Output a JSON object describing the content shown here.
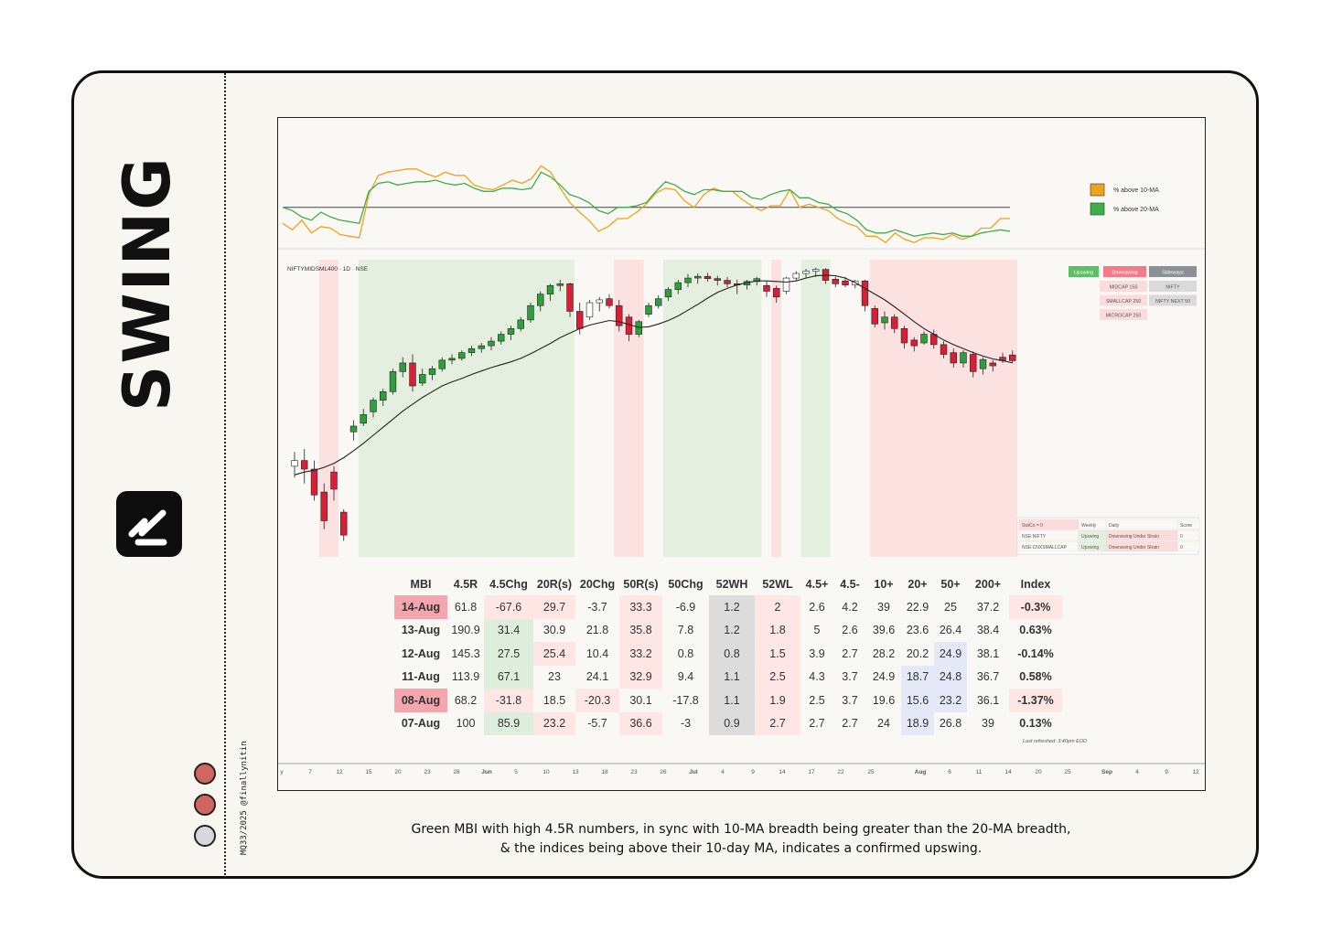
{
  "page": {
    "caption_line1": "Green MBI with high 4.5R numbers, in sync with 10-MA breadth being greater than the 20-MA breadth,",
    "caption_line2": "& the indices being above their 10-day MA, indicates a confirmed upswing.",
    "credit": "MQ33/2025 @finallynitin"
  },
  "brand": {
    "name": "SWING",
    "logo_icon": "swing-logo-icon"
  },
  "dots": [
    "#d06660",
    "#d06660",
    "#d5d8dd"
  ],
  "chart_data": [
    {
      "type": "line",
      "title": "",
      "legend_position": "top-right",
      "series": [
        {
          "name": "% above 10-MA",
          "color": "#f0a21a",
          "values": [
            42,
            38,
            44,
            36,
            40,
            39,
            35,
            34,
            33,
            60,
            72,
            74,
            75,
            76,
            76,
            73,
            71,
            74,
            72,
            72,
            66,
            64,
            63,
            66,
            69,
            67,
            70,
            78,
            74,
            64,
            55,
            49,
            44,
            37,
            40,
            45,
            45,
            49,
            54,
            61,
            64,
            63,
            56,
            52,
            60,
            64,
            62,
            62,
            57,
            53,
            50,
            53,
            53,
            63,
            52,
            54,
            52,
            50,
            45,
            42,
            40,
            34,
            34,
            30,
            36,
            32,
            30,
            33,
            33,
            32,
            35,
            32,
            34,
            39,
            39,
            45,
            45
          ]
        },
        {
          "name": "% above 20-MA",
          "color": "#3fae4a",
          "values": [
            52,
            50,
            46,
            44,
            49,
            46,
            44,
            43,
            42,
            62,
            67,
            68,
            66,
            67,
            68,
            68,
            69,
            67,
            66,
            67,
            64,
            62,
            62,
            64,
            64,
            63,
            64,
            74,
            71,
            66,
            60,
            58,
            55,
            50,
            48,
            52,
            52,
            53,
            55,
            62,
            68,
            66,
            62,
            60,
            63,
            63,
            62,
            62,
            62,
            58,
            57,
            60,
            62,
            63,
            58,
            58,
            55,
            54,
            50,
            48,
            44,
            38,
            36,
            36,
            38,
            36,
            34,
            35,
            36,
            35,
            36,
            34,
            34,
            36,
            37,
            38,
            37
          ]
        }
      ],
      "reference_line": 52
    },
    {
      "type": "candlestick",
      "title": "NIFTYMIDSML400 · 1D · NSE",
      "x_tick_labels": [
        "y",
        "7",
        "12",
        "15",
        "20",
        "23",
        "28",
        "Jun",
        "5",
        "10",
        "13",
        "18",
        "23",
        "26",
        "Jul",
        "4",
        "9",
        "14",
        "17",
        "22",
        "25",
        "Aug",
        "6",
        "11",
        "14",
        "20",
        "25",
        "Sep",
        "4",
        "9",
        "12"
      ],
      "regime_legend": {
        "upswing": "Upswing",
        "downswing": "Downswing",
        "sideways": "Sideways"
      },
      "regime_grid": [
        [
          "MIDCAP 150",
          "NIFTY"
        ],
        [
          "SMALLCAP 250",
          "NIFTY NEXT 50"
        ],
        [
          "MICROCAP 250",
          ""
        ]
      ],
      "status_table": {
        "headers": [
          "SwiCo = 0",
          "Weekly",
          "Daily",
          "Score"
        ],
        "rows": [
          [
            "NSE:NIFTY",
            "Upswing",
            "Downswing Under Strain",
            "0"
          ],
          [
            "NSE:CNXSMALLCAP",
            "Upswing",
            "Downswing Under Strain",
            "0"
          ]
        ]
      },
      "regimes": [
        [
          "neutral",
          0,
          3
        ],
        [
          "down",
          3,
          5
        ],
        [
          "neutral",
          5,
          7
        ],
        [
          "up",
          7,
          29
        ],
        [
          "neutral",
          29,
          33
        ],
        [
          "down",
          33,
          36
        ],
        [
          "neutral",
          36,
          38
        ],
        [
          "up",
          38,
          48
        ],
        [
          "neutral",
          48,
          49
        ],
        [
          "down",
          49,
          50
        ],
        [
          "neutral",
          50,
          52
        ],
        [
          "up",
          52,
          55
        ],
        [
          "neutral",
          55,
          59
        ],
        [
          "down",
          59,
          74
        ]
      ],
      "candles": [
        [
          3260,
          3285,
          3240,
          3270
        ],
        [
          3270,
          3290,
          3230,
          3255
        ],
        [
          3255,
          3270,
          3200,
          3210
        ],
        [
          3215,
          3230,
          3150,
          3165
        ],
        [
          3250,
          3260,
          3200,
          3220
        ],
        [
          3180,
          3185,
          3130,
          3140
        ],
        [
          3320,
          3340,
          3305,
          3330
        ],
        [
          3335,
          3360,
          3330,
          3350
        ],
        [
          3355,
          3380,
          3345,
          3375
        ],
        [
          3375,
          3395,
          3365,
          3390
        ],
        [
          3390,
          3430,
          3385,
          3425
        ],
        [
          3425,
          3450,
          3415,
          3440
        ],
        [
          3440,
          3455,
          3390,
          3400
        ],
        [
          3405,
          3430,
          3400,
          3420
        ],
        [
          3420,
          3435,
          3410,
          3430
        ],
        [
          3430,
          3450,
          3425,
          3445
        ],
        [
          3445,
          3455,
          3438,
          3448
        ],
        [
          3448,
          3462,
          3444,
          3458
        ],
        [
          3458,
          3470,
          3452,
          3465
        ],
        [
          3465,
          3475,
          3458,
          3470
        ],
        [
          3470,
          3485,
          3462,
          3478
        ],
        [
          3478,
          3495,
          3472,
          3490
        ],
        [
          3490,
          3505,
          3480,
          3500
        ],
        [
          3500,
          3520,
          3495,
          3515
        ],
        [
          3515,
          3545,
          3510,
          3540
        ],
        [
          3540,
          3565,
          3530,
          3560
        ],
        [
          3560,
          3578,
          3548,
          3575
        ],
        [
          3575,
          3585,
          3565,
          3578
        ],
        [
          3578,
          3580,
          3520,
          3530
        ],
        [
          3530,
          3545,
          3490,
          3500
        ],
        [
          3520,
          3550,
          3515,
          3545
        ],
        [
          3545,
          3555,
          3530,
          3550
        ],
        [
          3552,
          3560,
          3535,
          3540
        ],
        [
          3540,
          3550,
          3495,
          3505
        ],
        [
          3520,
          3525,
          3478,
          3490
        ],
        [
          3490,
          3515,
          3485,
          3512
        ],
        [
          3525,
          3545,
          3520,
          3540
        ],
        [
          3540,
          3558,
          3535,
          3552
        ],
        [
          3555,
          3572,
          3548,
          3568
        ],
        [
          3568,
          3585,
          3560,
          3580
        ],
        [
          3580,
          3595,
          3572,
          3588
        ],
        [
          3588,
          3596,
          3578,
          3591
        ],
        [
          3591,
          3597,
          3582,
          3587
        ],
        [
          3587,
          3592,
          3575,
          3584
        ],
        [
          3584,
          3590,
          3572,
          3578
        ],
        [
          3578,
          3585,
          3560,
          3576
        ],
        [
          3576,
          3585,
          3568,
          3582
        ],
        [
          3582,
          3590,
          3575,
          3587
        ],
        [
          3575,
          3582,
          3555,
          3565
        ],
        [
          3570,
          3575,
          3545,
          3555
        ],
        [
          3565,
          3590,
          3560,
          3588
        ],
        [
          3588,
          3600,
          3584,
          3596
        ],
        [
          3596,
          3604,
          3588,
          3600
        ],
        [
          3600,
          3606,
          3590,
          3603
        ],
        [
          3603,
          3605,
          3578,
          3584
        ],
        [
          3586,
          3590,
          3572,
          3578
        ],
        [
          3583,
          3590,
          3572,
          3576
        ],
        [
          3576,
          3585,
          3570,
          3583
        ],
        [
          3583,
          3585,
          3530,
          3540
        ],
        [
          3535,
          3540,
          3502,
          3508
        ],
        [
          3510,
          3530,
          3498,
          3520
        ],
        [
          3520,
          3525,
          3492,
          3500
        ],
        [
          3500,
          3505,
          3465,
          3475
        ],
        [
          3480,
          3485,
          3460,
          3470
        ],
        [
          3475,
          3495,
          3472,
          3490
        ],
        [
          3490,
          3498,
          3465,
          3472
        ],
        [
          3472,
          3478,
          3448,
          3455
        ],
        [
          3458,
          3465,
          3432,
          3440
        ],
        [
          3440,
          3462,
          3432,
          3458
        ],
        [
          3455,
          3460,
          3415,
          3425
        ],
        [
          3430,
          3450,
          3420,
          3446
        ],
        [
          3440,
          3445,
          3425,
          3435
        ],
        [
          3450,
          3458,
          3440,
          3444
        ],
        [
          3454,
          3462,
          3440,
          3444
        ]
      ],
      "moving_average": [
        3245,
        3250,
        3253,
        3258,
        3265,
        3275,
        3287,
        3300,
        3314,
        3328,
        3342,
        3356,
        3368,
        3380,
        3390,
        3400,
        3407,
        3413,
        3420,
        3426,
        3432,
        3437,
        3442,
        3448,
        3456,
        3465,
        3474,
        3484,
        3492,
        3500,
        3506,
        3510,
        3514,
        3512,
        3507,
        3502,
        3503,
        3508,
        3514,
        3522,
        3532,
        3542,
        3553,
        3563,
        3570,
        3576,
        3580,
        3583,
        3583,
        3582,
        3581,
        3583,
        3588,
        3592,
        3593,
        3592,
        3588,
        3580,
        3570,
        3560,
        3550,
        3538,
        3525,
        3512,
        3500,
        3490,
        3480,
        3472,
        3465,
        3458,
        3452,
        3447,
        3444,
        3440
      ]
    },
    {
      "type": "table",
      "headers": [
        "MBI",
        "4.5R",
        "4.5Chg",
        "20R(s)",
        "20Chg",
        "50R(s)",
        "50Chg",
        "52WH",
        "52WL",
        "4.5+",
        "4.5-",
        "10+",
        "20+",
        "50+",
        "200+",
        "Index"
      ],
      "rows": [
        [
          "14-Aug",
          "61.8",
          "-67.6",
          "29.7",
          "-3.7",
          "33.3",
          "-6.9",
          "1.2",
          "2",
          "2.6",
          "4.2",
          "39",
          "22.9",
          "25",
          "37.2",
          "-0.3%"
        ],
        [
          "13-Aug",
          "190.9",
          "31.4",
          "30.9",
          "21.8",
          "35.8",
          "7.8",
          "1.2",
          "1.8",
          "5",
          "2.6",
          "39.6",
          "23.6",
          "26.4",
          "38.4",
          "0.63%"
        ],
        [
          "12-Aug",
          "145.3",
          "27.5",
          "25.4",
          "10.4",
          "33.2",
          "0.8",
          "0.8",
          "1.5",
          "3.9",
          "2.7",
          "28.2",
          "20.2",
          "24.9",
          "38.1",
          "-0.14%"
        ],
        [
          "11-Aug",
          "113.9",
          "67.1",
          "23",
          "24.1",
          "32.9",
          "9.4",
          "1.1",
          "2.5",
          "4.3",
          "3.7",
          "24.9",
          "18.7",
          "24.8",
          "36.7",
          "0.58%"
        ],
        [
          "08-Aug",
          "68.2",
          "-31.8",
          "18.5",
          "-20.3",
          "30.1",
          "-17.8",
          "1.1",
          "1.9",
          "2.5",
          "3.7",
          "19.6",
          "15.6",
          "23.2",
          "36.1",
          "-1.37%"
        ],
        [
          "07-Aug",
          "100",
          "85.9",
          "23.2",
          "-5.7",
          "36.6",
          "-3",
          "0.9",
          "2.7",
          "2.7",
          "2.7",
          "24",
          "18.9",
          "26.8",
          "39",
          "0.13%"
        ]
      ],
      "cell_colors": [
        [
          "#f3a6ae",
          "",
          "#fde6e4",
          "#fde6e4",
          "",
          "#fde6e4",
          "",
          "#dcdcdc",
          "#fde6e4",
          "",
          "",
          "",
          "",
          "",
          "",
          "#fde6e4"
        ],
        [
          "",
          "",
          "#ddeedc",
          "",
          "",
          "#fde6e4",
          "",
          "#dcdcdc",
          "#fde6e4",
          "",
          "",
          "",
          "",
          "",
          "",
          ""
        ],
        [
          "",
          "",
          "#ddeedc",
          "#fde6e4",
          "",
          "#fde6e4",
          "",
          "#dcdcdc",
          "#fde6e4",
          "",
          "",
          "",
          "",
          "#e4e8f7",
          "",
          ""
        ],
        [
          "",
          "",
          "#ddeedc",
          "",
          "",
          "#fde6e4",
          "",
          "#dcdcdc",
          "#fde6e4",
          "",
          "",
          "",
          "#e4e8f7",
          "#e4e8f7",
          "",
          ""
        ],
        [
          "#f3a6ae",
          "",
          "#fde6e4",
          "",
          "#fde6e4",
          "",
          "",
          "#dcdcdc",
          "#fde6e4",
          "",
          "",
          "",
          "#e4e8f7",
          "#e4e8f7",
          "",
          "#fde6e4"
        ],
        [
          "",
          "",
          "#ddeedc",
          "#fde6e4",
          "",
          "#fde6e4",
          "",
          "#dcdcdc",
          "#fde6e4",
          "",
          "",
          "",
          "#e4e8f7",
          "",
          "",
          ""
        ]
      ],
      "footnote": "Last refreshed: 3:40pm EOD"
    }
  ]
}
